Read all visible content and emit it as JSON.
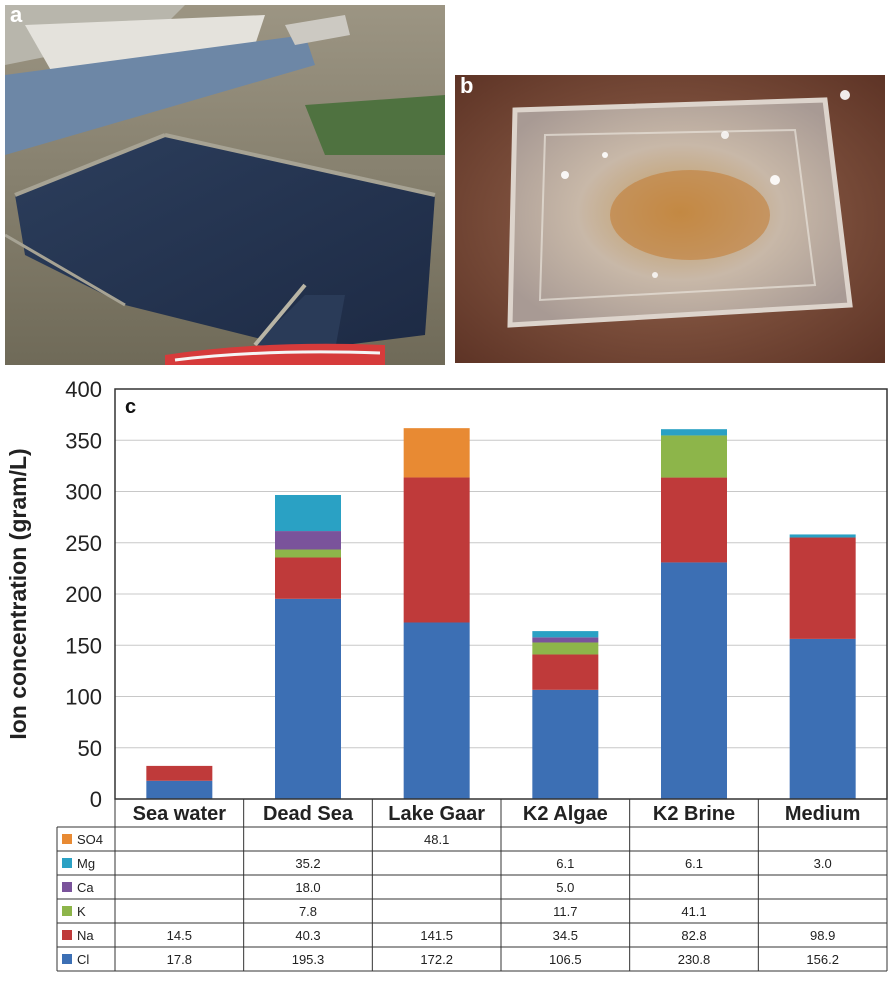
{
  "panels": {
    "a_label": "a",
    "b_label": "b",
    "c_label": "c"
  },
  "chart_data": {
    "type": "bar",
    "stacked": true,
    "ylabel": "Ion concentration (gram/L)",
    "ylim": [
      0,
      400
    ],
    "yticks": [
      0,
      50,
      100,
      150,
      200,
      250,
      300,
      350,
      400
    ],
    "grid": true,
    "legend": "data-table-left",
    "categories": [
      "Sea water",
      "Dead Sea",
      "Lake Gaar",
      "K2 Algae",
      "K2 Brine",
      "Medium"
    ],
    "series": [
      {
        "name": "Cl",
        "color": "#3c6fb4",
        "values": [
          17.8,
          195.3,
          172.2,
          106.5,
          230.8,
          156.2
        ],
        "labels": [
          "17.8",
          "195.3",
          "172.2",
          "106.5",
          "230.8",
          "156.2"
        ]
      },
      {
        "name": "Na",
        "color": "#bf3a3a",
        "values": [
          14.5,
          40.3,
          141.5,
          34.5,
          82.8,
          98.9
        ],
        "labels": [
          "14.5",
          "40.3",
          "141.5",
          "34.5",
          "82.8",
          "98.9"
        ]
      },
      {
        "name": "K",
        "color": "#8db54a",
        "values": [
          0,
          7.8,
          0,
          11.7,
          41.1,
          0
        ],
        "labels": [
          "",
          "7.8",
          "",
          "11.7",
          "41.1",
          ""
        ]
      },
      {
        "name": "Ca",
        "color": "#7a539b",
        "values": [
          0,
          18.0,
          0,
          5.0,
          0,
          0
        ],
        "labels": [
          "",
          "18.0",
          "",
          "5.0",
          "",
          ""
        ]
      },
      {
        "name": "Mg",
        "color": "#2aa1c4",
        "values": [
          0,
          35.2,
          0,
          6.1,
          6.1,
          3.0
        ],
        "labels": [
          "",
          "35.2",
          "",
          "6.1",
          "6.1",
          "3.0"
        ]
      },
      {
        "name": "SO4",
        "color": "#e88a33",
        "values": [
          0,
          0,
          48.1,
          0,
          0,
          0
        ],
        "labels": [
          "",
          "",
          "48.1",
          "",
          "",
          ""
        ]
      }
    ]
  }
}
